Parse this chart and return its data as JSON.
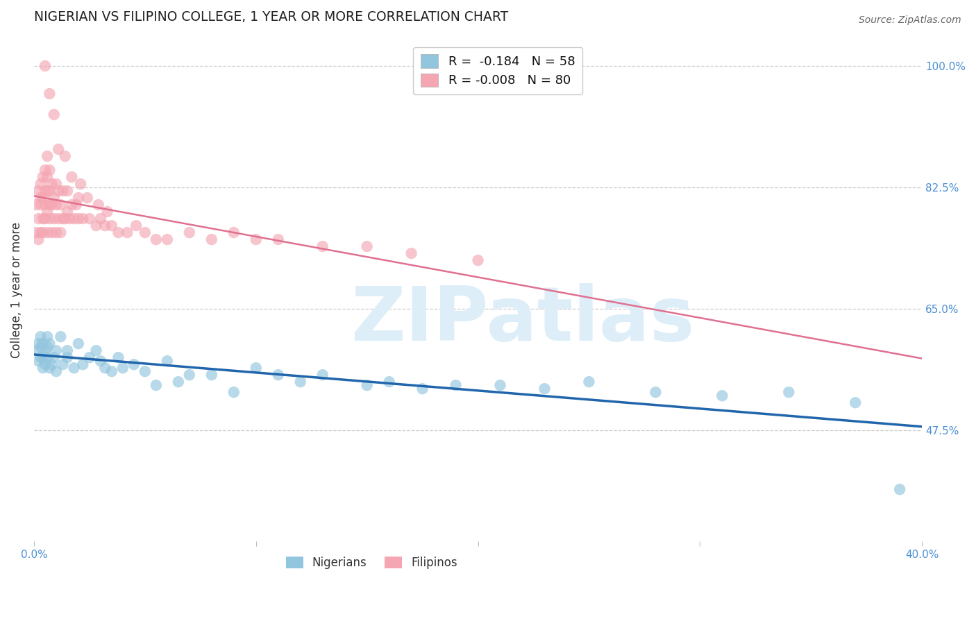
{
  "title": "NIGERIAN VS FILIPINO COLLEGE, 1 YEAR OR MORE CORRELATION CHART",
  "source": "Source: ZipAtlas.com",
  "ylabel": "College, 1 year or more",
  "xlim": [
    0.0,
    0.4
  ],
  "ylim": [
    0.315,
    1.04
  ],
  "xtick_labels": [
    "0.0%",
    "",
    "",
    "",
    "40.0%"
  ],
  "xtick_vals": [
    0.0,
    0.1,
    0.2,
    0.3,
    0.4
  ],
  "ytick_labels": [
    "47.5%",
    "65.0%",
    "82.5%",
    "100.0%"
  ],
  "ytick_vals": [
    0.475,
    0.65,
    0.825,
    1.0
  ],
  "blue_color": "#92c5de",
  "pink_color": "#f4a6b2",
  "blue_line_color": "#2166ac",
  "pink_line_color": "#e07090",
  "tick_label_color": "#4a8fd4",
  "watermark_color": "#ddeef8",
  "blue_N": 58,
  "pink_N": 80,
  "blue_R": -0.184,
  "pink_R": -0.008,
  "nigerians_x": [
    0.001,
    0.002,
    0.002,
    0.003,
    0.003,
    0.003,
    0.004,
    0.004,
    0.004,
    0.005,
    0.005,
    0.006,
    0.006,
    0.006,
    0.007,
    0.007,
    0.008,
    0.009,
    0.01,
    0.01,
    0.012,
    0.013,
    0.015,
    0.015,
    0.018,
    0.02,
    0.022,
    0.025,
    0.028,
    0.03,
    0.032,
    0.035,
    0.038,
    0.04,
    0.045,
    0.05,
    0.055,
    0.06,
    0.065,
    0.07,
    0.08,
    0.09,
    0.1,
    0.11,
    0.12,
    0.13,
    0.15,
    0.16,
    0.175,
    0.19,
    0.21,
    0.23,
    0.25,
    0.28,
    0.31,
    0.34,
    0.37,
    0.39
  ],
  "nigerians_y": [
    0.59,
    0.6,
    0.575,
    0.61,
    0.58,
    0.595,
    0.565,
    0.6,
    0.58,
    0.59,
    0.57,
    0.61,
    0.58,
    0.595,
    0.565,
    0.6,
    0.57,
    0.58,
    0.59,
    0.56,
    0.61,
    0.57,
    0.58,
    0.59,
    0.565,
    0.6,
    0.57,
    0.58,
    0.59,
    0.575,
    0.565,
    0.56,
    0.58,
    0.565,
    0.57,
    0.56,
    0.54,
    0.575,
    0.545,
    0.555,
    0.555,
    0.53,
    0.565,
    0.555,
    0.545,
    0.555,
    0.54,
    0.545,
    0.535,
    0.54,
    0.54,
    0.535,
    0.545,
    0.53,
    0.525,
    0.53,
    0.515,
    0.39
  ],
  "filipinos_x": [
    0.001,
    0.001,
    0.002,
    0.002,
    0.002,
    0.003,
    0.003,
    0.003,
    0.003,
    0.004,
    0.004,
    0.004,
    0.004,
    0.005,
    0.005,
    0.005,
    0.005,
    0.006,
    0.006,
    0.006,
    0.006,
    0.006,
    0.007,
    0.007,
    0.007,
    0.007,
    0.008,
    0.008,
    0.008,
    0.009,
    0.009,
    0.01,
    0.01,
    0.01,
    0.011,
    0.011,
    0.012,
    0.012,
    0.013,
    0.013,
    0.014,
    0.015,
    0.015,
    0.016,
    0.017,
    0.018,
    0.019,
    0.02,
    0.02,
    0.022,
    0.025,
    0.028,
    0.03,
    0.032,
    0.035,
    0.038,
    0.042,
    0.046,
    0.05,
    0.055,
    0.06,
    0.07,
    0.08,
    0.09,
    0.1,
    0.11,
    0.13,
    0.15,
    0.17,
    0.2,
    0.005,
    0.007,
    0.009,
    0.011,
    0.014,
    0.017,
    0.021,
    0.024,
    0.029,
    0.033
  ],
  "filipinos_y": [
    0.76,
    0.8,
    0.82,
    0.78,
    0.75,
    0.81,
    0.76,
    0.8,
    0.83,
    0.78,
    0.76,
    0.81,
    0.84,
    0.82,
    0.78,
    0.8,
    0.85,
    0.76,
    0.79,
    0.82,
    0.84,
    0.87,
    0.78,
    0.8,
    0.82,
    0.85,
    0.76,
    0.8,
    0.83,
    0.78,
    0.81,
    0.76,
    0.8,
    0.83,
    0.78,
    0.82,
    0.76,
    0.8,
    0.78,
    0.82,
    0.78,
    0.79,
    0.82,
    0.78,
    0.8,
    0.78,
    0.8,
    0.78,
    0.81,
    0.78,
    0.78,
    0.77,
    0.78,
    0.77,
    0.77,
    0.76,
    0.76,
    0.77,
    0.76,
    0.75,
    0.75,
    0.76,
    0.75,
    0.76,
    0.75,
    0.75,
    0.74,
    0.74,
    0.73,
    0.72,
    1.0,
    0.96,
    0.93,
    0.88,
    0.87,
    0.84,
    0.83,
    0.81,
    0.8,
    0.79
  ]
}
